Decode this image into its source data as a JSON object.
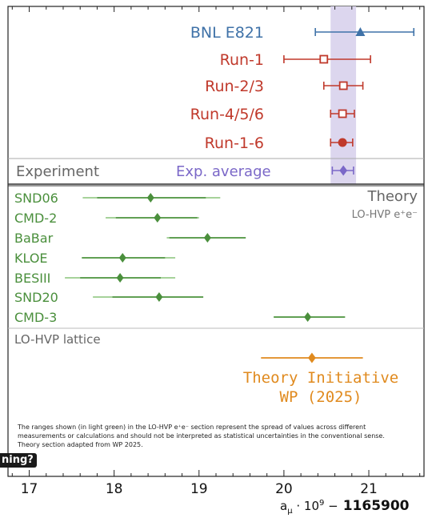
{
  "chart_data": {
    "type": "scatter",
    "xlim": [
      16.75,
      21.65
    ],
    "x_ticks": [
      "17",
      "18",
      "19",
      "20",
      "21"
    ],
    "axis": {
      "symbol": "a",
      "subscript": "μ",
      "scale_prefix": "· 10",
      "scale_exponent": "9",
      "minus": " −",
      "offset": "1165900"
    },
    "band": {
      "center": 20.7,
      "half_width": 0.15,
      "color": "#dcd6ee"
    },
    "experiment": {
      "labels": {
        "left": "Experiment",
        "right": "Exp. average"
      },
      "points": [
        {
          "name": "BNL E821",
          "value": 20.9,
          "err_low": 20.37,
          "err_high": 21.53,
          "color": "#3f72a8",
          "marker": "triangle"
        },
        {
          "name": "Run-1",
          "value": 20.47,
          "err_low": 20.0,
          "err_high": 21.02,
          "color": "#c0392b",
          "marker": "open-square"
        },
        {
          "name": "Run-2/3",
          "value": 20.7,
          "err_low": 20.47,
          "err_high": 20.93,
          "color": "#c0392b",
          "marker": "open-square"
        },
        {
          "name": "Run-4/5/6",
          "value": 20.69,
          "err_low": 20.55,
          "err_high": 20.83,
          "color": "#c0392b",
          "marker": "open-square"
        },
        {
          "name": "Run-1-6",
          "value": 20.69,
          "err_low": 20.55,
          "err_high": 20.81,
          "color": "#c0392b",
          "marker": "filled-circle"
        },
        {
          "name": "Exp. average",
          "value": 20.7,
          "err_low": 20.57,
          "err_high": 20.82,
          "color": "#7b68c8",
          "marker": "diamond"
        }
      ]
    },
    "theory_ee": {
      "header": "Theory",
      "subheader": "LO-HVP e⁺e⁻",
      "color": "#4a8f3c",
      "light_color": "#a6d29a",
      "points": [
        {
          "name": "SND06",
          "value": 18.43,
          "spread_low": 17.63,
          "spread_high": 19.25,
          "err_low": 17.8,
          "err_high": 19.08
        },
        {
          "name": "CMD-2",
          "value": 18.51,
          "spread_low": 17.9,
          "spread_high": 19.0,
          "err_low": 18.02,
          "err_high": 18.98
        },
        {
          "name": "BaBar",
          "value": 19.1,
          "spread_low": 18.62,
          "spread_high": 19.55,
          "err_low": 18.65,
          "err_high": 19.55
        },
        {
          "name": "KLOE",
          "value": 18.1,
          "spread_low": 17.62,
          "spread_high": 18.72,
          "err_low": 17.62,
          "err_high": 18.6
        },
        {
          "name": "BESIII",
          "value": 18.07,
          "spread_low": 17.42,
          "spread_high": 18.72,
          "err_low": 17.6,
          "err_high": 18.55
        },
        {
          "name": "SND20",
          "value": 18.53,
          "spread_low": 17.75,
          "spread_high": 19.05,
          "err_low": 17.98,
          "err_high": 19.05
        },
        {
          "name": "CMD-3",
          "value": 20.28,
          "spread_low": 19.88,
          "spread_high": 20.72,
          "err_low": 19.88,
          "err_high": 20.72
        }
      ]
    },
    "lattice": {
      "label": "LO-HVP lattice",
      "wp": {
        "name_line1": "Theory Initiative",
        "name_line2": "WP (2025)",
        "value": 20.33,
        "err_low": 19.73,
        "err_high": 20.93,
        "color": "#e08a1e"
      }
    },
    "footnote": "The ranges shown (in light green) in the LO-HVP e⁺e⁻ section represent the spread of values across different measurements or calculations and should not be interpreted as statistical uncertainties in the conventional sense. Theory section adapted from WP 2025.",
    "cut_label": "ning?"
  }
}
